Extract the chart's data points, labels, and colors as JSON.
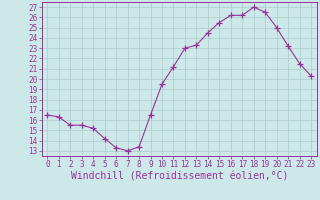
{
  "hours": [
    0,
    1,
    2,
    3,
    4,
    5,
    6,
    7,
    8,
    9,
    10,
    11,
    12,
    13,
    14,
    15,
    16,
    17,
    18,
    19,
    20,
    21,
    22,
    23
  ],
  "values": [
    16.5,
    16.3,
    15.5,
    15.5,
    15.2,
    14.2,
    13.3,
    13.0,
    13.4,
    16.5,
    19.5,
    21.2,
    23.0,
    23.3,
    24.5,
    25.5,
    26.2,
    26.2,
    27.0,
    26.5,
    25.0,
    23.2,
    21.5,
    20.3
  ],
  "line_color": "#993399",
  "marker": "+",
  "marker_size": 4,
  "bg_color": "#cce8e8",
  "grid_color": "#aacccc",
  "xlabel": "Windchill (Refroidissement éolien,°C)",
  "xlabel_color": "#993399",
  "ylabel_ticks": [
    13,
    14,
    15,
    16,
    17,
    18,
    19,
    20,
    21,
    22,
    23,
    24,
    25,
    26,
    27
  ],
  "ylim": [
    12.5,
    27.5
  ],
  "xlim": [
    -0.5,
    23.5
  ],
  "tick_color": "#993399",
  "tick_fontsize": 5.5,
  "xlabel_fontsize": 7,
  "spine_color": "#993399"
}
